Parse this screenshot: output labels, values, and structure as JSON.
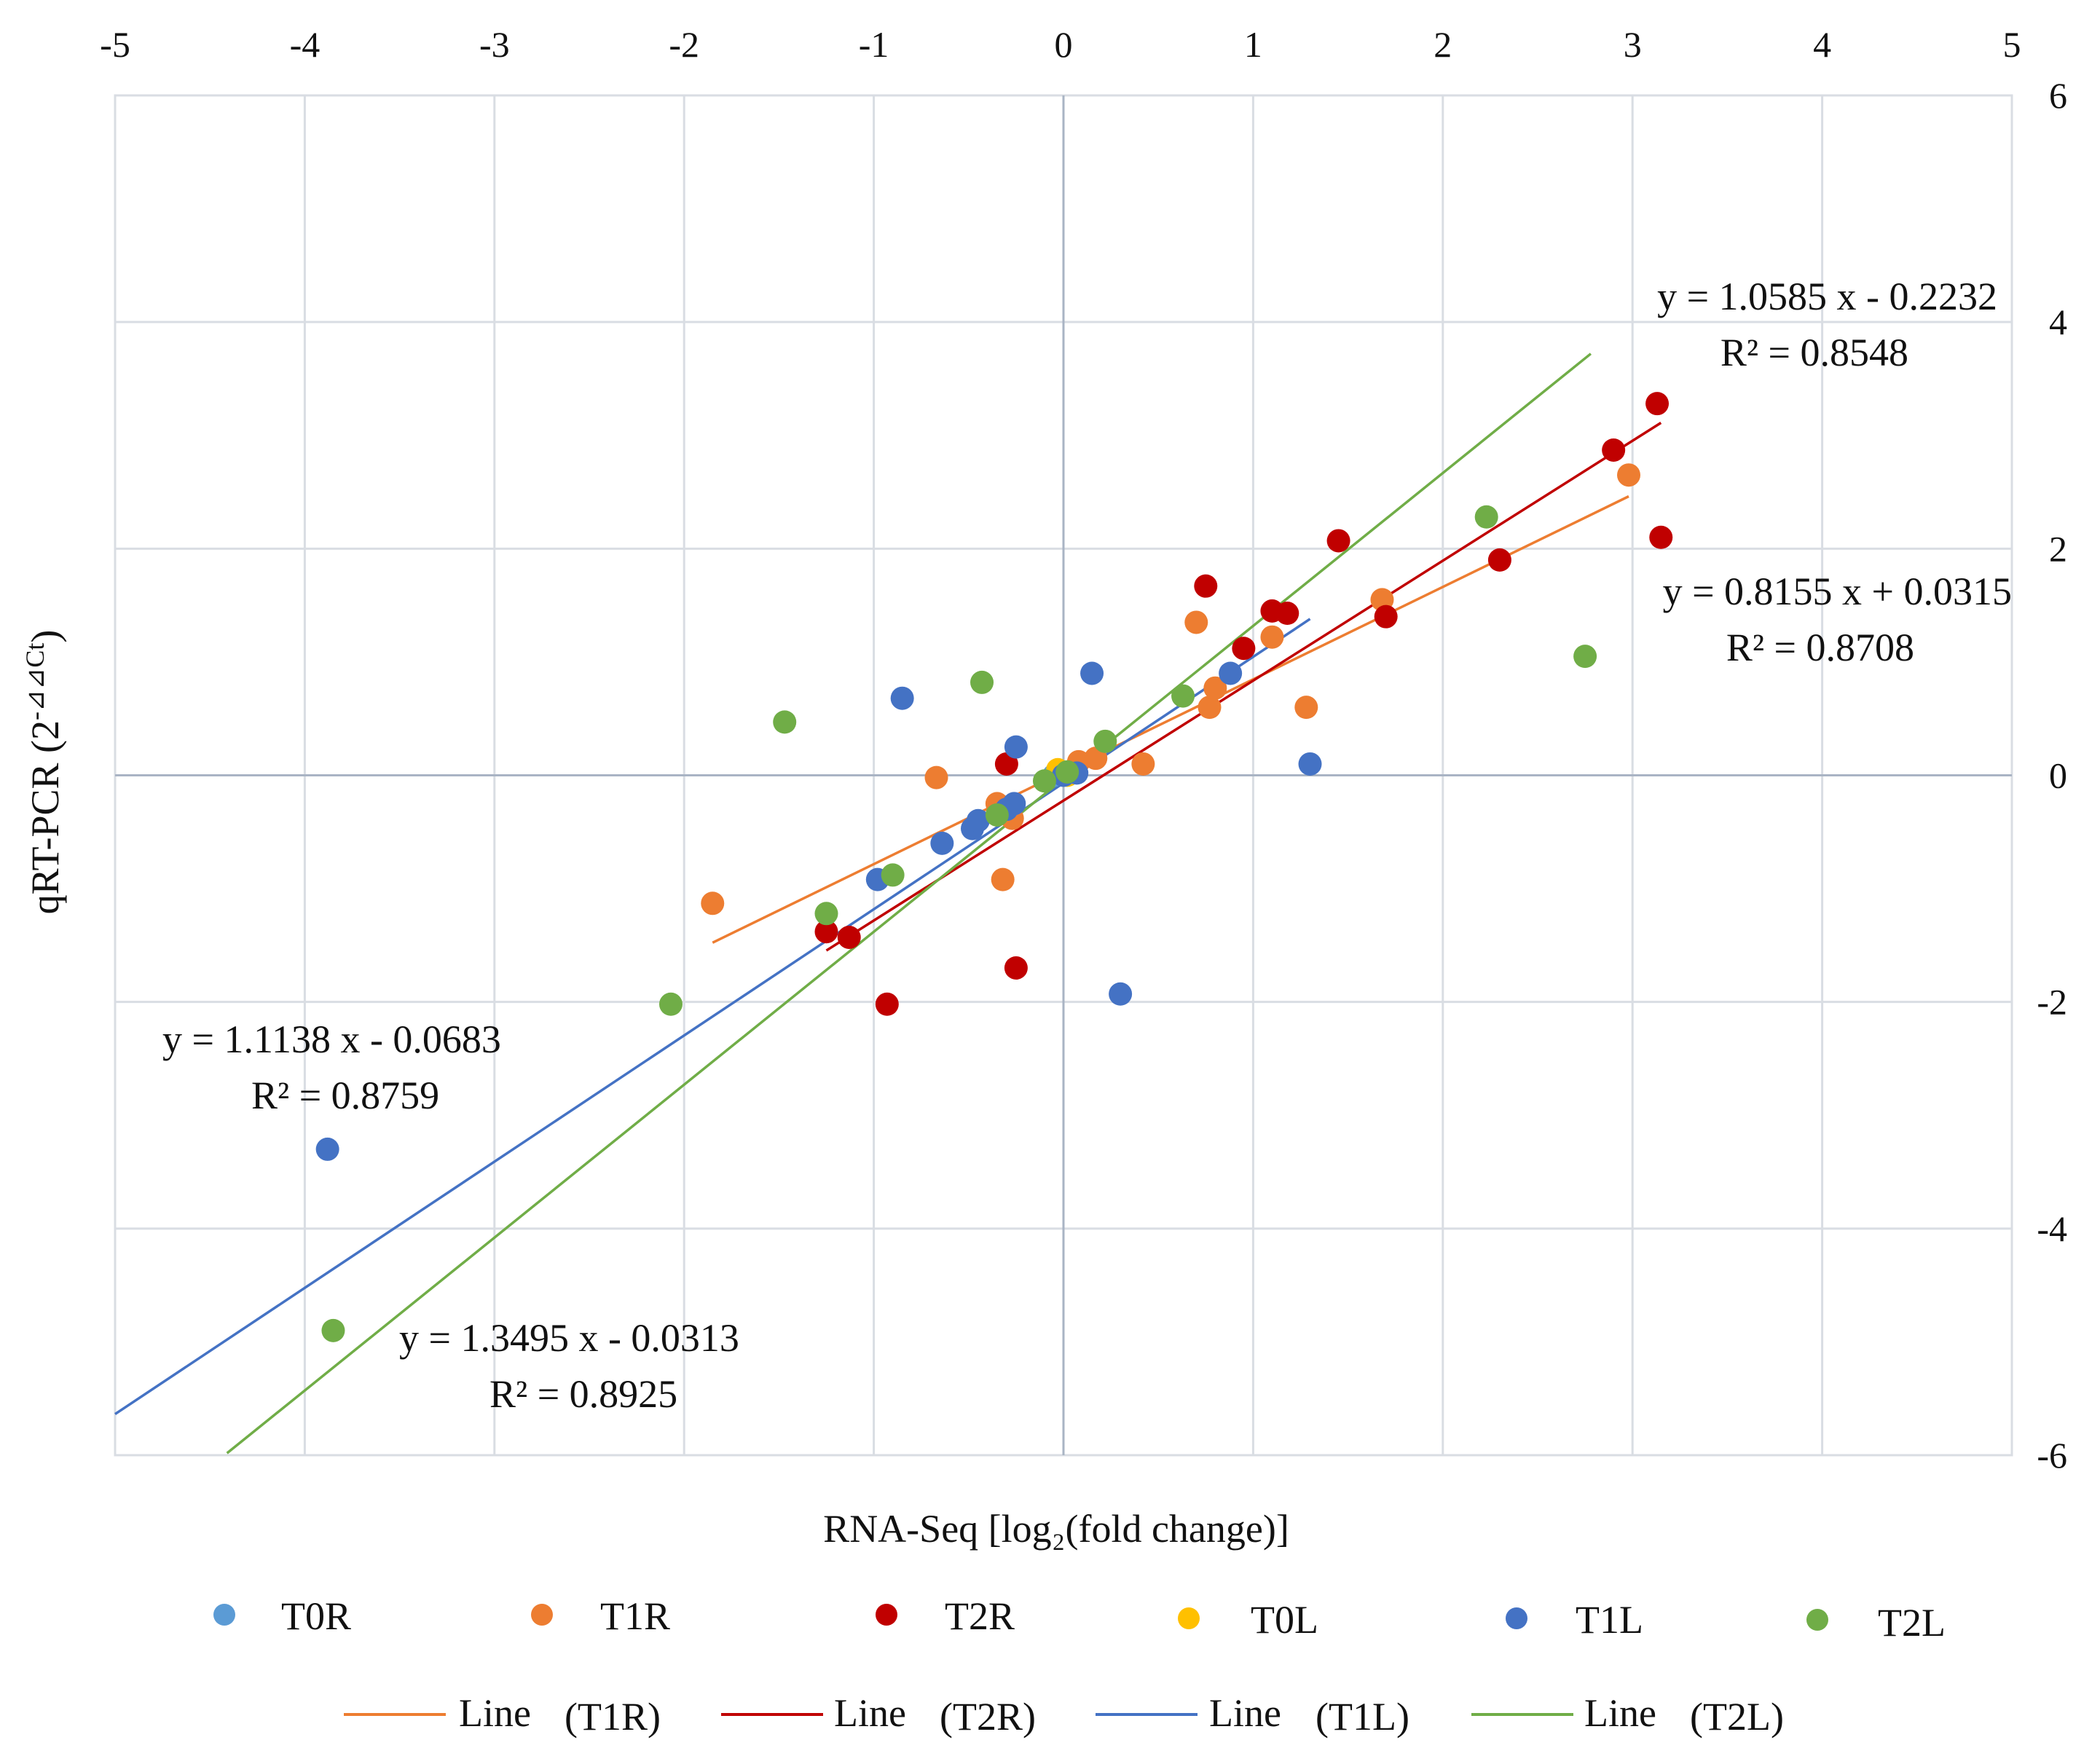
{
  "chart_data": {
    "type": "scatter",
    "title": "",
    "xlabel": "RNA-Seq [log₂(fold change)]",
    "ylabel_main": "qRT-PCR (2",
    "ylabel_sup": "-⊿⊿Ct",
    "ylabel_close": ")",
    "xlim": [
      -5,
      5
    ],
    "ylim": [
      -6,
      6
    ],
    "x_ticks": [
      -5,
      -4,
      -3,
      -2,
      -1,
      0,
      1,
      2,
      3,
      4,
      5
    ],
    "y_ticks": [
      -6,
      -4,
      -2,
      0,
      2,
      4,
      6
    ],
    "x_tick_labels": [
      "-5",
      "-4",
      "-3",
      "-2",
      "-1",
      "0",
      "1",
      "2",
      "3",
      "4",
      "5"
    ],
    "y_tick_labels": [
      "-6",
      "-4",
      "-2",
      "0",
      "2",
      "4",
      "6"
    ],
    "grid": true,
    "x_axis_position": "top",
    "y_axis_position": "right",
    "series": [
      {
        "name": "T0R",
        "color": "#5b9bd5",
        "points": [
          [
            0.0,
            0.02
          ],
          [
            0.05,
            0.03
          ],
          [
            -0.05,
            0.0
          ]
        ]
      },
      {
        "name": "T1R",
        "color": "#ed7d31",
        "points": [
          [
            -1.85,
            -1.13
          ],
          [
            -0.67,
            -0.02
          ],
          [
            -0.35,
            -0.25
          ],
          [
            -0.32,
            -0.92
          ],
          [
            -0.3,
            -0.3
          ],
          [
            -0.27,
            -0.38
          ],
          [
            0.08,
            0.12
          ],
          [
            0.17,
            0.15
          ],
          [
            0.42,
            0.1
          ],
          [
            0.77,
            0.6
          ],
          [
            0.8,
            0.77
          ],
          [
            0.7,
            1.35
          ],
          [
            1.1,
            1.22
          ],
          [
            1.28,
            0.6
          ],
          [
            1.68,
            1.55
          ],
          [
            2.98,
            2.65
          ]
        ]
      },
      {
        "name": "T2R",
        "color": "#c00000",
        "points": [
          [
            -1.25,
            -1.38
          ],
          [
            -1.13,
            -1.43
          ],
          [
            -0.93,
            -2.02
          ],
          [
            -0.3,
            0.1
          ],
          [
            -0.25,
            -1.7
          ],
          [
            0.75,
            1.67
          ],
          [
            0.95,
            1.12
          ],
          [
            1.1,
            1.45
          ],
          [
            1.18,
            1.43
          ],
          [
            1.45,
            2.07
          ],
          [
            1.7,
            1.4
          ],
          [
            2.3,
            1.9
          ],
          [
            2.9,
            2.87
          ],
          [
            3.13,
            3.28
          ],
          [
            3.15,
            2.1
          ]
        ]
      },
      {
        "name": "T0L",
        "color": "#ffc000",
        "points": [
          [
            -0.03,
            0.05
          ],
          [
            0.02,
            0.0
          ]
        ]
      },
      {
        "name": "T1L",
        "color": "#4472c4",
        "points": [
          [
            -3.88,
            -3.3
          ],
          [
            -0.98,
            -0.92
          ],
          [
            -0.85,
            0.68
          ],
          [
            -0.64,
            -0.6
          ],
          [
            -0.48,
            -0.47
          ],
          [
            -0.45,
            -0.4
          ],
          [
            -0.3,
            -0.3
          ],
          [
            -0.26,
            -0.25
          ],
          [
            -0.25,
            0.25
          ],
          [
            0.0,
            0.0
          ],
          [
            0.07,
            0.02
          ],
          [
            0.15,
            0.9
          ],
          [
            0.3,
            -1.93
          ],
          [
            0.88,
            0.9
          ],
          [
            1.3,
            0.1
          ]
        ]
      },
      {
        "name": "T2L",
        "color": "#70ad47",
        "points": [
          [
            -3.85,
            -4.9
          ],
          [
            -2.07,
            -2.02
          ],
          [
            -1.47,
            0.47
          ],
          [
            -1.25,
            -1.22
          ],
          [
            -0.9,
            -0.88
          ],
          [
            -0.43,
            0.82
          ],
          [
            -0.35,
            -0.35
          ],
          [
            -0.1,
            -0.05
          ],
          [
            0.02,
            0.03
          ],
          [
            0.22,
            0.3
          ],
          [
            0.63,
            0.7
          ],
          [
            2.23,
            2.28
          ],
          [
            2.75,
            1.05
          ]
        ]
      }
    ],
    "trendlines": [
      {
        "name": "Line (T1R)",
        "series": "T1R",
        "color": "#ed7d31",
        "slope": 0.8155,
        "intercept": 0.0315,
        "x_range": [
          -1.85,
          2.98
        ],
        "equation": "y = 0.8155 x + 0.0315",
        "r2": "R² = 0.8708"
      },
      {
        "name": "Line (T2R)",
        "series": "T2R",
        "color": "#c00000",
        "slope": 1.0585,
        "intercept": -0.2232,
        "x_range": [
          -1.25,
          3.15
        ],
        "equation": "y = 1.0585 x - 0.2232",
        "r2": "R² = 0.8548"
      },
      {
        "name": "Line (T1L)",
        "series": "T1L",
        "color": "#4472c4",
        "slope": 1.1138,
        "intercept": -0.0683,
        "x_range": [
          -5.0,
          1.3
        ],
        "equation": "y = 1.1138 x - 0.0683",
        "r2": "R² = 0.8759"
      },
      {
        "name": "Line (T2L)",
        "series": "T2L",
        "color": "#70ad47",
        "slope": 1.3495,
        "intercept": -0.0313,
        "x_range": [
          -4.41,
          2.78
        ],
        "equation": "y = 1.3495 x - 0.0313",
        "r2": "R² = 0.8925"
      }
    ],
    "legend": {
      "markers": [
        {
          "label": "T0R",
          "color": "#5b9bd5"
        },
        {
          "label": "T1R",
          "color": "#ed7d31"
        },
        {
          "label": "T2R",
          "color": "#c00000"
        },
        {
          "label": "T0L",
          "color": "#ffc000"
        },
        {
          "label": "T1L",
          "color": "#4472c4"
        },
        {
          "label": "T2L",
          "color": "#70ad47"
        }
      ],
      "lines": [
        {
          "label": "Line",
          "series": "(T1R)",
          "color": "#ed7d31"
        },
        {
          "label": "Line",
          "series": "(T2R)",
          "color": "#c00000"
        },
        {
          "label": "Line",
          "series": "(T1L)",
          "color": "#4472c4"
        },
        {
          "label": "Line",
          "series": "(T2L)",
          "color": "#70ad47"
        }
      ],
      "position": "bottom"
    }
  }
}
